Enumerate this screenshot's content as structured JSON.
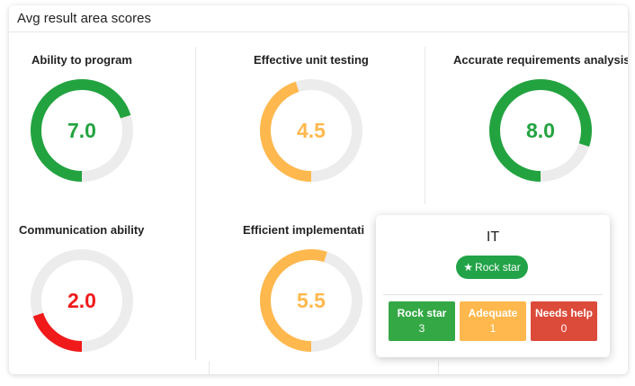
{
  "panel": {
    "title": "Avg result area scores"
  },
  "colors": {
    "green": "#22a33f",
    "orange": "#ffb84d",
    "red": "#f01a1a",
    "track": "#ececec"
  },
  "tiles": [
    {
      "title": "Ability to program",
      "value": "7.0",
      "score": 7.0,
      "max": 10,
      "color": "#22a33f"
    },
    {
      "title": "Effective unit testing",
      "value": "4.5",
      "score": 4.5,
      "max": 10,
      "color": "#ffb84d"
    },
    {
      "title": "Accurate requirements analysis",
      "value": "8.0",
      "score": 8.0,
      "max": 10,
      "color": "#22a33f"
    },
    {
      "title": "Communication ability",
      "value": "2.0",
      "score": 2.0,
      "max": 10,
      "color": "#f01a1a"
    },
    {
      "title": "Efficient implementati",
      "value": "5.5",
      "score": 5.5,
      "max": 10,
      "color": "#ffb84d"
    }
  ],
  "popover": {
    "title": "IT",
    "badge": "Rock star",
    "badge_icon": "star-icon",
    "counts": [
      {
        "label": "Rock star",
        "count": "3",
        "color": "#33a844"
      },
      {
        "label": "Adequate",
        "count": "1",
        "color": "#ffb84d"
      },
      {
        "label": "Needs help",
        "count": "0",
        "color": "#dc4a3a"
      }
    ]
  }
}
